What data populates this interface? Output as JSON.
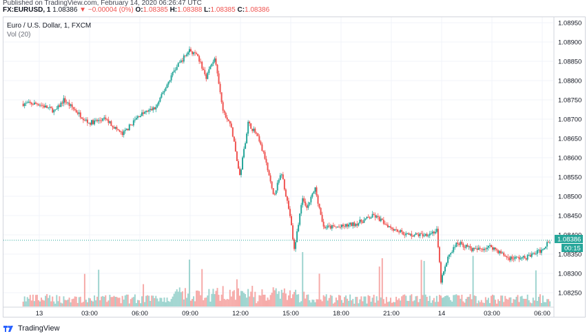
{
  "header": {
    "published": "Published on TradingView.com, February 14, 2020 06:26:47 UTC",
    "symbol": "FX:EURUSD, 1",
    "last": "1.08386",
    "change": "−0.00004 (0%)",
    "o_label": "O:",
    "o_value": "1.08385",
    "h_label": "H:",
    "h_value": "1.08388",
    "l_label": "L:",
    "l_value": "1.08385",
    "c_label": "C:",
    "c_value": "1.08386"
  },
  "legend": {
    "title": "Euro / U.S. Dollar, 1, FXCM",
    "volume": "Vol (20)"
  },
  "price_axis": {
    "ticks": [
      "1.08950",
      "1.08900",
      "1.08850",
      "1.08800",
      "1.08750",
      "1.08700",
      "1.08650",
      "1.08600",
      "1.08550",
      "1.08500",
      "1.08450",
      "1.08400",
      "1.08350",
      "1.08300",
      "1.08250"
    ],
    "current_price": "1.08386",
    "countdown": "00:15"
  },
  "time_axis": {
    "ticks": [
      "13",
      "03:00",
      "06:00",
      "09:00",
      "12:00",
      "15:00",
      "18:00",
      "21:00",
      "14",
      "03:00",
      "06:00"
    ]
  },
  "footer": {
    "brand": "TradingView"
  },
  "colors": {
    "up": "#26a69a",
    "down": "#ef5350",
    "vol_up": "#9ed4cf",
    "vol_down": "#f6aaa8",
    "price_line": "#26a69a",
    "grid": "#f0f3fa"
  },
  "chart_data": {
    "type": "candlestick",
    "symbol": "EURUSD",
    "interval": "1",
    "y_range": [
      1.0822,
      1.0897
    ],
    "path": [
      [
        "13 00:00",
        1.0874
      ],
      [
        "13 01:00",
        1.0872
      ],
      [
        "13 01:30",
        1.0875
      ],
      [
        "13 02:00",
        1.0873
      ],
      [
        "13 03:00",
        1.0869
      ],
      [
        "13 04:00",
        1.087
      ],
      [
        "13 05:00",
        1.0866
      ],
      [
        "13 06:00",
        1.0871
      ],
      [
        "13 07:00",
        1.0873
      ],
      [
        "13 08:00",
        1.0882
      ],
      [
        "13 08:30",
        1.0885
      ],
      [
        "13 09:00",
        1.0888
      ],
      [
        "13 09:30",
        1.0886
      ],
      [
        "13 10:00",
        1.0881
      ],
      [
        "13 10:30",
        1.0886
      ],
      [
        "13 11:00",
        1.0872
      ],
      [
        "13 11:30",
        1.0868
      ],
      [
        "13 12:00",
        1.0855
      ],
      [
        "13 12:30",
        1.0869
      ],
      [
        "13 13:00",
        1.0866
      ],
      [
        "13 13:30",
        1.086
      ],
      [
        "13 14:00",
        1.085
      ],
      [
        "13 14:30",
        1.0856
      ],
      [
        "13 15:00",
        1.0845
      ],
      [
        "13 15:15",
        1.0836
      ],
      [
        "13 15:45",
        1.085
      ],
      [
        "13 16:00",
        1.0847
      ],
      [
        "13 16:30",
        1.0852
      ],
      [
        "13 17:00",
        1.0842
      ],
      [
        "13 18:00",
        1.0842
      ],
      [
        "13 19:00",
        1.0843
      ],
      [
        "13 20:00",
        1.0845
      ],
      [
        "13 21:00",
        1.0842
      ],
      [
        "13 22:00",
        1.084
      ],
      [
        "13 23:00",
        1.084
      ],
      [
        "13 23:45",
        1.0841
      ],
      [
        "14 00:00",
        1.0828
      ],
      [
        "14 00:30",
        1.0835
      ],
      [
        "14 01:00",
        1.0838
      ],
      [
        "14 02:00",
        1.0836
      ],
      [
        "14 03:00",
        1.0837
      ],
      [
        "14 04:00",
        1.0834
      ],
      [
        "14 05:00",
        1.0834
      ],
      [
        "14 06:00",
        1.0836
      ],
      [
        "14 06:26",
        1.08386
      ]
    ]
  }
}
